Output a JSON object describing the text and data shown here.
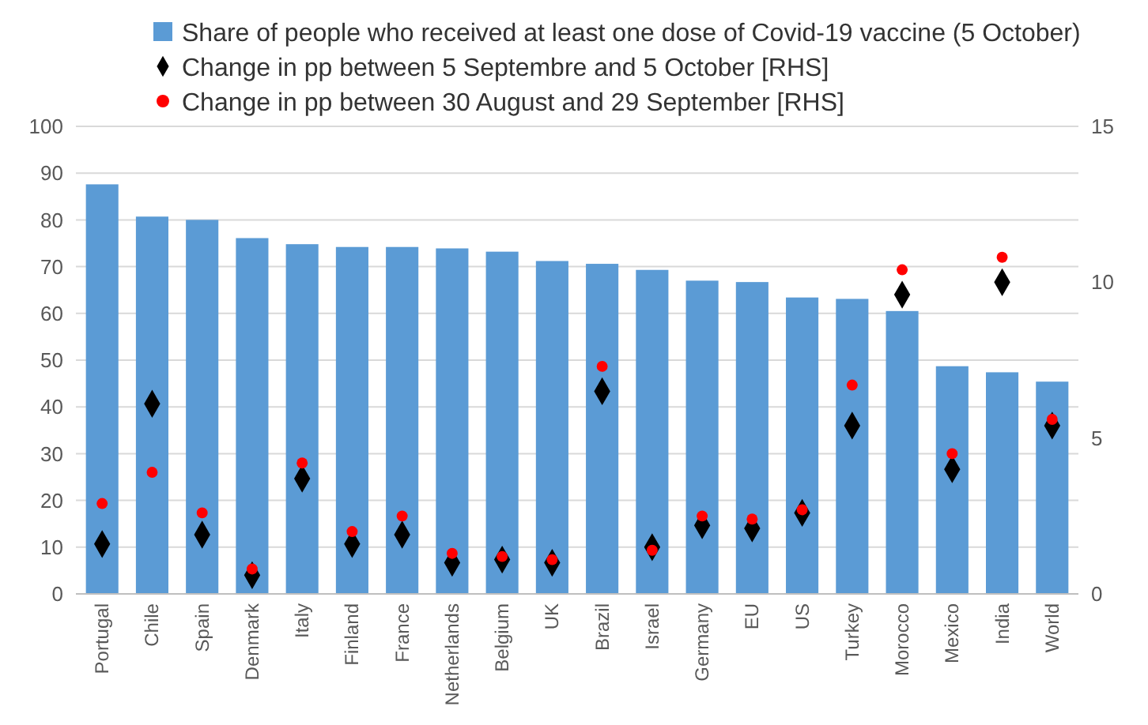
{
  "chart_data": {
    "type": "bar",
    "categories": [
      "Portugal",
      "Chile",
      "Spain",
      "Denmark",
      "Italy",
      "Finland",
      "France",
      "Netherlands",
      "Belgium",
      "UK",
      "Brazil",
      "Israel",
      "Germany",
      "EU",
      "US",
      "Turkey",
      "Morocco",
      "Mexico",
      "India",
      "World"
    ],
    "series": [
      {
        "name": "Share of people who received at least one dose of Covid-19 vaccine (5 October)",
        "color": "#5b9bd5",
        "values": [
          87.6,
          80.7,
          80,
          76.1,
          74.8,
          74.2,
          74.2,
          73.9,
          73.2,
          71.2,
          70.6,
          69.3,
          67,
          66.7,
          63.4,
          63.1,
          60.5,
          48.7,
          47.4,
          45.4
        ]
      },
      {
        "name": "Change in pp between 5 Septembre and 5 October [RHS]",
        "type": "scatter",
        "axis": "y2",
        "marker": "diamond",
        "color": "#000000",
        "values": [
          1.6,
          6.1,
          1.9,
          0.6,
          3.7,
          1.6,
          1.9,
          1.0,
          1.1,
          1.0,
          6.5,
          1.5,
          2.2,
          2.1,
          2.6,
          5.4,
          9.6,
          4.0,
          10.0,
          5.4
        ]
      },
      {
        "name": "Change in pp between 30 August and 29 September [RHS]",
        "type": "scatter",
        "axis": "y2",
        "marker": "circle",
        "color": "#ff0000",
        "values": [
          2.9,
          3.9,
          2.6,
          0.8,
          4.2,
          2.0,
          2.5,
          1.3,
          1.2,
          1.1,
          7.3,
          1.4,
          2.5,
          2.4,
          2.7,
          6.7,
          10.4,
          4.5,
          10.8,
          5.6
        ]
      }
    ],
    "ylim": [
      0,
      100
    ],
    "yticks": [
      0,
      10,
      20,
      30,
      40,
      50,
      60,
      70,
      80,
      90,
      100
    ],
    "y2lim": [
      0,
      15
    ],
    "y2ticks": [
      0,
      5,
      10,
      15
    ],
    "grid": "y",
    "legend": "top"
  }
}
